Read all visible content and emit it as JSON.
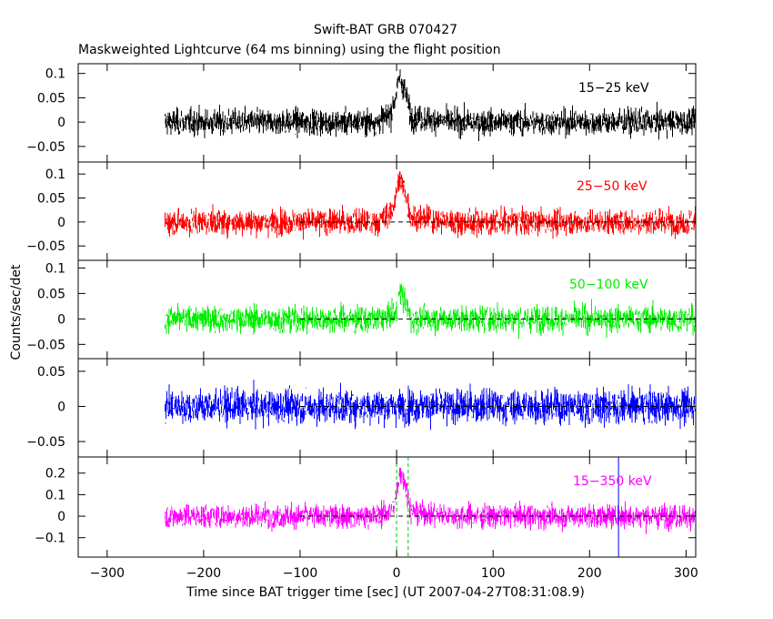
{
  "title": "Swift-BAT GRB 070427",
  "subtitle": "Maskweighted Lightcurve (64 ms binning) using the flight position",
  "chart_data": {
    "type": "line",
    "title": "Swift-BAT GRB 070427",
    "subtitle": "Maskweighted Lightcurve (64 ms binning) using the flight position",
    "xlabel": "Time since BAT trigger time [sec] (UT 2007-04-27T08:31:08.9)",
    "ylabel": "Counts/sec/det",
    "xlim": [
      -330,
      310
    ],
    "x_ticks": [
      -300,
      -200,
      -100,
      0,
      100,
      200,
      300
    ],
    "data_range": [
      -240,
      310
    ],
    "grid": false,
    "panels": [
      {
        "band": "15-25 keV",
        "color": "#000000",
        "ylim": [
          -0.082,
          0.12
        ],
        "y_ticks": [
          0.1,
          0.05,
          0,
          -0.05
        ],
        "y_tick_labels": [
          "0.1",
          "0.05",
          "0",
          "−0.05"
        ],
        "noise_sigma": 0.022,
        "peak_height": 0.07,
        "show_zero_line": false,
        "burst_markers": false,
        "series": [
          {
            "x": -240,
            "y": 0.0
          },
          {
            "x": -120,
            "y": 0.0
          },
          {
            "x": -20,
            "y": 0.0
          },
          {
            "x": -5,
            "y": 0.02
          },
          {
            "x": 3,
            "y": 0.09
          },
          {
            "x": 8,
            "y": 0.07
          },
          {
            "x": 15,
            "y": 0.01
          },
          {
            "x": 60,
            "y": 0.0
          },
          {
            "x": 200,
            "y": 0.0
          },
          {
            "x": 310,
            "y": 0.0
          }
        ]
      },
      {
        "band": "25-50 keV",
        "color": "#ff0000",
        "ylim": [
          -0.08,
          0.125
        ],
        "y_ticks": [
          0.1,
          0.05,
          0,
          -0.05
        ],
        "y_tick_labels": [
          "0.1",
          "0.05",
          "0",
          "−0.05"
        ],
        "noise_sigma": 0.022,
        "peak_height": 0.075,
        "show_zero_line": true,
        "burst_markers": false,
        "series": [
          {
            "x": -240,
            "y": 0.0
          },
          {
            "x": -120,
            "y": 0.0
          },
          {
            "x": -20,
            "y": 0.0
          },
          {
            "x": -5,
            "y": 0.02
          },
          {
            "x": 3,
            "y": 0.09
          },
          {
            "x": 8,
            "y": 0.07
          },
          {
            "x": 15,
            "y": 0.01
          },
          {
            "x": 60,
            "y": 0.0
          },
          {
            "x": 200,
            "y": 0.0
          },
          {
            "x": 310,
            "y": 0.0
          }
        ]
      },
      {
        "band": "50-100 keV",
        "color": "#00ee00",
        "ylim": [
          -0.078,
          0.115
        ],
        "y_ticks": [
          0.1,
          0.05,
          0,
          -0.05
        ],
        "y_tick_labels": [
          "0.1",
          "0.05",
          "0",
          "−0.05"
        ],
        "noise_sigma": 0.021,
        "peak_height": 0.04,
        "show_zero_line": true,
        "burst_markers": false,
        "series": [
          {
            "x": -240,
            "y": 0.0
          },
          {
            "x": -120,
            "y": 0.0
          },
          {
            "x": -20,
            "y": 0.0
          },
          {
            "x": 0,
            "y": 0.01
          },
          {
            "x": 3,
            "y": 0.05
          },
          {
            "x": 8,
            "y": 0.04
          },
          {
            "x": 15,
            "y": 0.0
          },
          {
            "x": 60,
            "y": 0.0
          },
          {
            "x": 200,
            "y": 0.0
          },
          {
            "x": 310,
            "y": 0.0
          }
        ]
      },
      {
        "band": "",
        "color": "#0000ff",
        "ylim": [
          -0.072,
          0.068
        ],
        "y_ticks": [
          0.05,
          0,
          -0.05
        ],
        "y_tick_labels": [
          "0.05",
          "0",
          "−0.05"
        ],
        "noise_sigma": 0.02,
        "peak_height": 0.0,
        "show_zero_line": true,
        "burst_markers": false,
        "series": [
          {
            "x": -240,
            "y": 0.0
          },
          {
            "x": 0,
            "y": 0.0
          },
          {
            "x": 310,
            "y": 0.0
          }
        ]
      },
      {
        "band": "15-350 keV",
        "color": "#ff00ff",
        "ylim": [
          -0.19,
          0.275
        ],
        "y_ticks": [
          0.2,
          0.1,
          0,
          -0.1
        ],
        "y_tick_labels": [
          "0.2",
          "0.1",
          "0",
          "−0.1"
        ],
        "noise_sigma": 0.045,
        "peak_height": 0.16,
        "show_zero_line": true,
        "burst_markers": true,
        "markers": [
          {
            "x": 0,
            "color": "#00cc00"
          },
          {
            "x": 12,
            "color": "#00cc00"
          },
          {
            "x": 230,
            "color": "#0000ff"
          }
        ],
        "series": [
          {
            "x": -240,
            "y": 0.0
          },
          {
            "x": -120,
            "y": 0.0
          },
          {
            "x": -20,
            "y": 0.0
          },
          {
            "x": -3,
            "y": 0.03
          },
          {
            "x": 3,
            "y": 0.2
          },
          {
            "x": 8,
            "y": 0.17
          },
          {
            "x": 15,
            "y": 0.02
          },
          {
            "x": 60,
            "y": 0.0
          },
          {
            "x": 200,
            "y": 0.0
          },
          {
            "x": 310,
            "y": 0.0
          }
        ]
      }
    ]
  }
}
